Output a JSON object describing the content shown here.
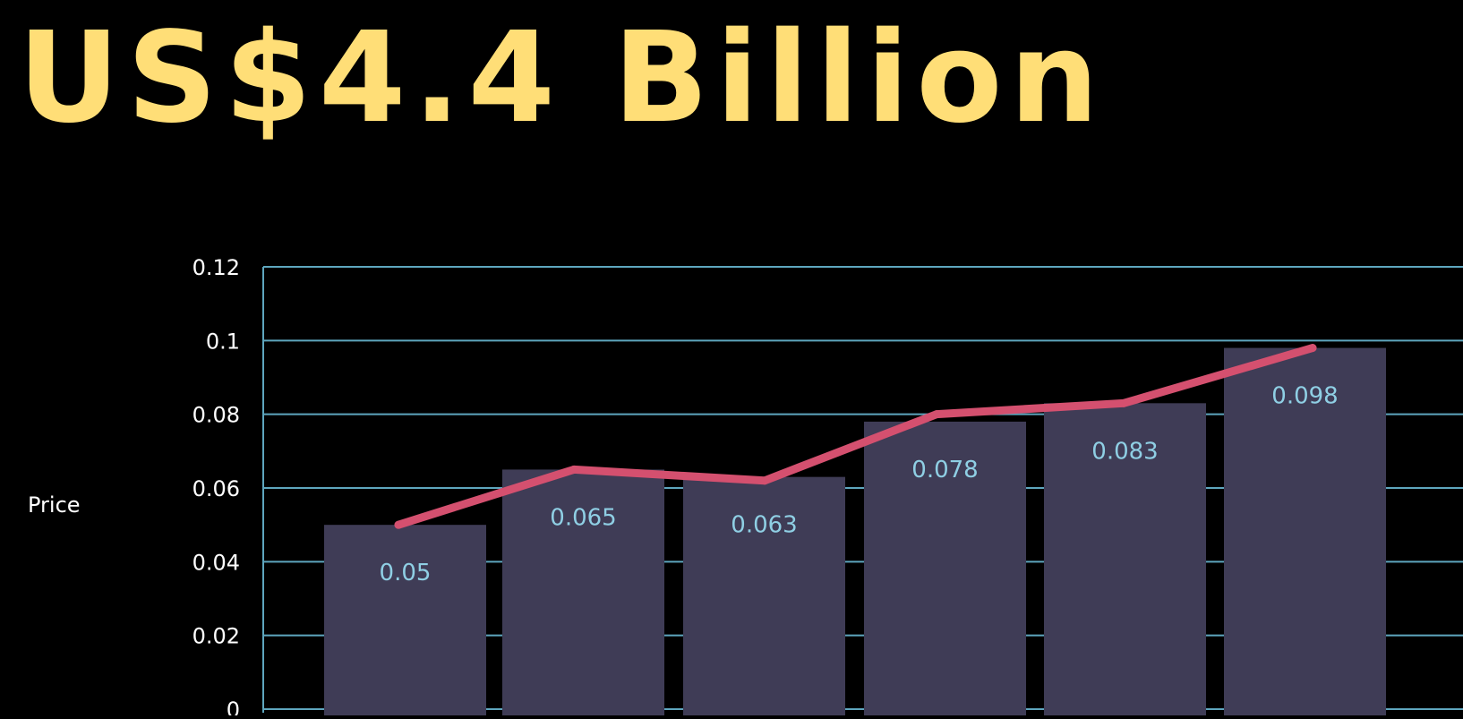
{
  "headline": "US$4.4 Billion",
  "colors": {
    "background": "#000000",
    "headline": "#FFDE77",
    "bar": "#3F3C56",
    "line": "#D4506F",
    "grid": "#5EA6BE",
    "tick_label": "#FFFFFF",
    "data_label": "#8FCFE4"
  },
  "chart_data": {
    "type": "bar",
    "ylabel": "Price",
    "ylim": [
      0,
      0.12
    ],
    "yticks": [
      "0",
      "0.02",
      "0.04",
      "0.06",
      "0.08",
      "0.1",
      "0.12"
    ],
    "grid": true,
    "values": [
      0.05,
      0.065,
      0.063,
      0.078,
      0.083,
      0.098
    ],
    "data_labels": [
      "0.05",
      "0.065",
      "0.063",
      "0.078",
      "0.083",
      "0.098"
    ],
    "line_values": [
      0.05,
      0.065,
      0.062,
      0.08,
      0.083,
      0.098
    ]
  }
}
